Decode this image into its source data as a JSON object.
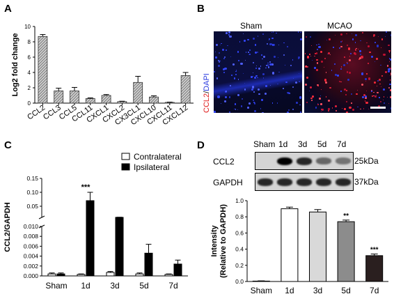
{
  "panels": {
    "a": "A",
    "b": "B",
    "c": "C",
    "d": "D"
  },
  "chart_data": [
    {
      "panel": "A",
      "type": "bar",
      "ylabel": "Log2 fold change",
      "ylim": [
        0,
        10
      ],
      "yticks": [
        0,
        2,
        4,
        6,
        8,
        10
      ],
      "categories": [
        "CCL2",
        "CCL3",
        "CCL5",
        "CCL11",
        "CXCL1",
        "CXCL2",
        "CX3CL1",
        "CXCL10",
        "CXCL11",
        "CXCL12"
      ],
      "values": [
        8.7,
        1.6,
        1.6,
        0.6,
        1.0,
        0.2,
        2.7,
        0.8,
        0.1,
        3.6
      ],
      "errors": [
        0.25,
        0.35,
        0.45,
        0.08,
        0.12,
        0.05,
        0.8,
        0.15,
        0.03,
        0.4
      ],
      "bar_color": "#bdbdbd"
    },
    {
      "panel": "C",
      "type": "bar",
      "ylabel": "CCL2/GAPDH",
      "broken_axis": true,
      "lower_ylim": [
        0,
        0.01
      ],
      "lower_yticks": [
        "0.000",
        "0.002",
        "0.004",
        "0.006",
        "0.008",
        "0.010"
      ],
      "upper_ylim": [
        0.01,
        0.15
      ],
      "upper_yticks": [
        "0.05",
        "0.10",
        "0.15"
      ],
      "categories": [
        "Sham",
        "1d",
        "3d",
        "5d",
        "7d"
      ],
      "series": [
        {
          "name": "Contralateral",
          "color": "#ffffff",
          "values": [
            0.0004,
            0.0003,
            0.0007,
            0.0004,
            0.0003
          ],
          "errors": [
            0.0002,
            0.0001,
            0.0002,
            0.0002,
            0.0001
          ]
        },
        {
          "name": "Ipsilateral",
          "color": "#000000",
          "values": [
            0.0004,
            0.07,
            0.0101,
            0.0046,
            0.0024
          ],
          "errors": [
            0.0002,
            0.03,
            0.0006,
            0.0018,
            0.0008
          ]
        }
      ],
      "significance": [
        {
          "category": "1d",
          "label": "***"
        }
      ],
      "legend_position": "top-right"
    },
    {
      "panel": "D",
      "type": "bar",
      "ylabel": "Intensity (Relative to GAPDH)",
      "ylim": [
        0,
        1.0
      ],
      "yticks": [
        "0.0",
        "0.2",
        "0.4",
        "0.6",
        "0.8",
        "1.0"
      ],
      "categories": [
        "Sham",
        "1d",
        "3d",
        "5d",
        "7d"
      ],
      "values": [
        0.005,
        0.9,
        0.86,
        0.74,
        0.32
      ],
      "errors": [
        0.003,
        0.02,
        0.03,
        0.02,
        0.02
      ],
      "colors": [
        "#ffffff",
        "#ffffff",
        "#d9d9d9",
        "#8c8c8c",
        "#2a1f1f"
      ],
      "significance": [
        {
          "category": "5d",
          "label": "**"
        },
        {
          "category": "7d",
          "label": "***"
        }
      ]
    }
  ],
  "micrographs": {
    "ylabel_ccl2": "CCL2",
    "ylabel_sep": "/",
    "ylabel_dapi": "DAPI",
    "sham": "Sham",
    "mcao": "MCAO"
  },
  "blot": {
    "lanes": [
      "Sham",
      "1d",
      "3d",
      "5d",
      "7d"
    ],
    "rows": [
      {
        "protein": "CCL2",
        "size": "25kDa",
        "intensity": [
          0.0,
          1.0,
          0.85,
          0.6,
          0.55
        ]
      },
      {
        "protein": "GAPDH",
        "size": "37kDa",
        "intensity": [
          0.85,
          0.85,
          0.85,
          0.85,
          0.85
        ]
      }
    ]
  }
}
